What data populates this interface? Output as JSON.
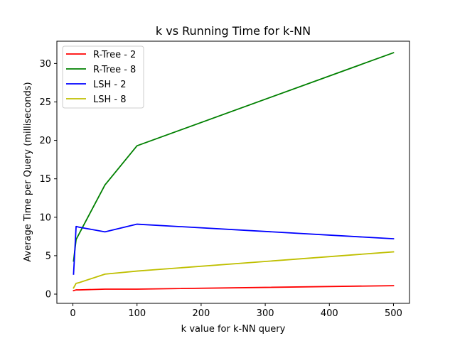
{
  "chart_data": {
    "type": "line",
    "title": "k vs Running Time for k-NN",
    "xlabel": "k value for k-NN query",
    "ylabel": "Average Time per Query (milliseconds)",
    "xlim": [
      -25,
      525
    ],
    "ylim": [
      -1.2,
      32.9
    ],
    "xticks": [
      0,
      100,
      200,
      300,
      400,
      500
    ],
    "yticks": [
      0,
      5,
      10,
      15,
      20,
      25,
      30
    ],
    "x": [
      1,
      5,
      10,
      50,
      100,
      500
    ],
    "grid": false,
    "legend_position": "upper-left",
    "series": [
      {
        "name": "R-Tree - 2",
        "color": "#ff0000",
        "values": [
          0.45,
          0.55,
          0.55,
          0.65,
          0.65,
          1.1
        ]
      },
      {
        "name": "R-Tree - 8",
        "color": "#008000",
        "values": [
          4.3,
          7.1,
          7.9,
          14.2,
          19.3,
          31.4
        ]
      },
      {
        "name": "LSH - 2",
        "color": "#0000ff",
        "values": [
          2.6,
          8.8,
          8.7,
          8.1,
          9.1,
          7.2
        ]
      },
      {
        "name": "LSH - 8",
        "color": "#bfbf00",
        "values": [
          0.8,
          1.4,
          1.5,
          2.6,
          3.0,
          5.5
        ]
      }
    ]
  }
}
